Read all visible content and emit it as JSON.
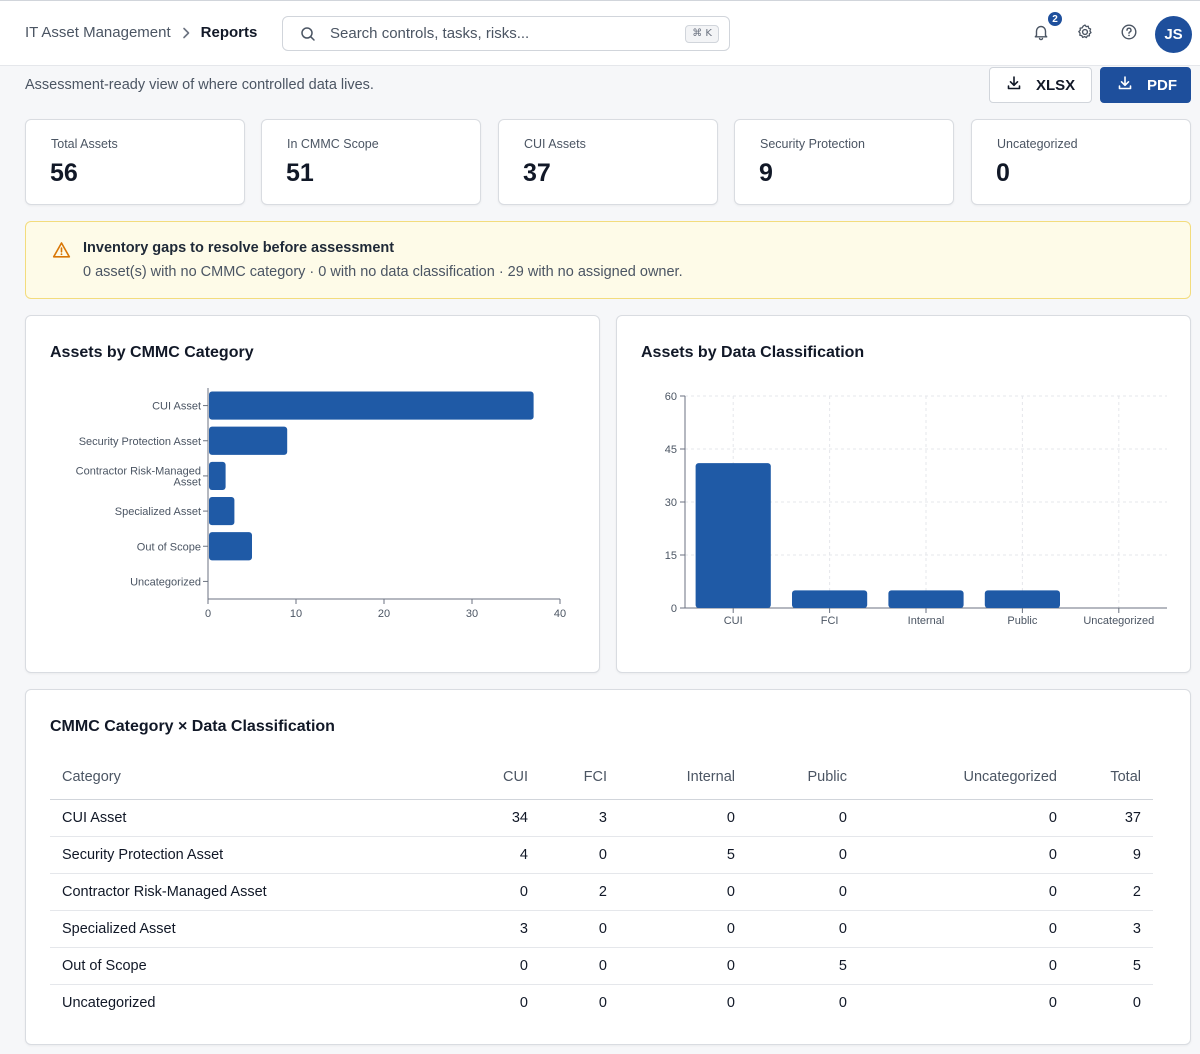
{
  "header": {
    "breadcrumb_root": "IT Asset Management",
    "breadcrumb_current": "Reports",
    "search_placeholder": "Search controls, tasks, risks...",
    "search_shortcut": "⌘ K",
    "notification_count": "2",
    "avatar_initials": "JS"
  },
  "page": {
    "subtitle": "Assessment-ready view of where controlled data lives.",
    "export_xlsx_label": "XLSX",
    "export_pdf_label": "PDF"
  },
  "stats": [
    {
      "label": "Total Assets",
      "value": "56"
    },
    {
      "label": "In CMMC Scope",
      "value": "51"
    },
    {
      "label": "CUI Assets",
      "value": "37"
    },
    {
      "label": "Security Protection",
      "value": "9"
    },
    {
      "label": "Uncategorized",
      "value": "0"
    }
  ],
  "alert": {
    "title": "Inventory gaps to resolve before assessment",
    "description": "0 asset(s) with no CMMC category · 0 with no data classification · 29 with no assigned owner."
  },
  "colors": {
    "accent": "#1e4f9c",
    "bar": "#1f5aa6",
    "alert_bg": "#fefbe8",
    "alert_border": "#f3dc7d",
    "alert_icon": "#d97706"
  },
  "chart_data": [
    {
      "type": "bar",
      "orientation": "horizontal",
      "title": "Assets by CMMC Category",
      "categories": [
        "CUI Asset",
        "Security Protection Asset",
        "Contractor Risk-Managed Asset",
        "Specialized Asset",
        "Out of Scope",
        "Uncategorized"
      ],
      "values": [
        37,
        9,
        2,
        3,
        5,
        0
      ],
      "xlim": [
        0,
        40
      ],
      "xticks": [
        0,
        10,
        20,
        30,
        40
      ],
      "grid": false
    },
    {
      "type": "bar",
      "orientation": "vertical",
      "title": "Assets by Data Classification",
      "categories": [
        "CUI",
        "FCI",
        "Internal",
        "Public",
        "Uncategorized"
      ],
      "values": [
        41,
        5,
        5,
        5,
        0
      ],
      "ylim": [
        0,
        60
      ],
      "yticks": [
        0,
        15,
        30,
        45,
        60
      ],
      "grid": true
    }
  ],
  "matrix": {
    "title": "CMMC Category × Data Classification",
    "columns": [
      "Category",
      "CUI",
      "FCI",
      "Internal",
      "Public",
      "Uncategorized",
      "Total"
    ],
    "rows": [
      [
        "CUI Asset",
        "34",
        "3",
        "0",
        "0",
        "0",
        "37"
      ],
      [
        "Security Protection Asset",
        "4",
        "0",
        "5",
        "0",
        "0",
        "9"
      ],
      [
        "Contractor Risk-Managed Asset",
        "0",
        "2",
        "0",
        "0",
        "0",
        "2"
      ],
      [
        "Specialized Asset",
        "3",
        "0",
        "0",
        "0",
        "0",
        "3"
      ],
      [
        "Out of Scope",
        "0",
        "0",
        "0",
        "5",
        "0",
        "5"
      ],
      [
        "Uncategorized",
        "0",
        "0",
        "0",
        "0",
        "0",
        "0"
      ]
    ]
  }
}
